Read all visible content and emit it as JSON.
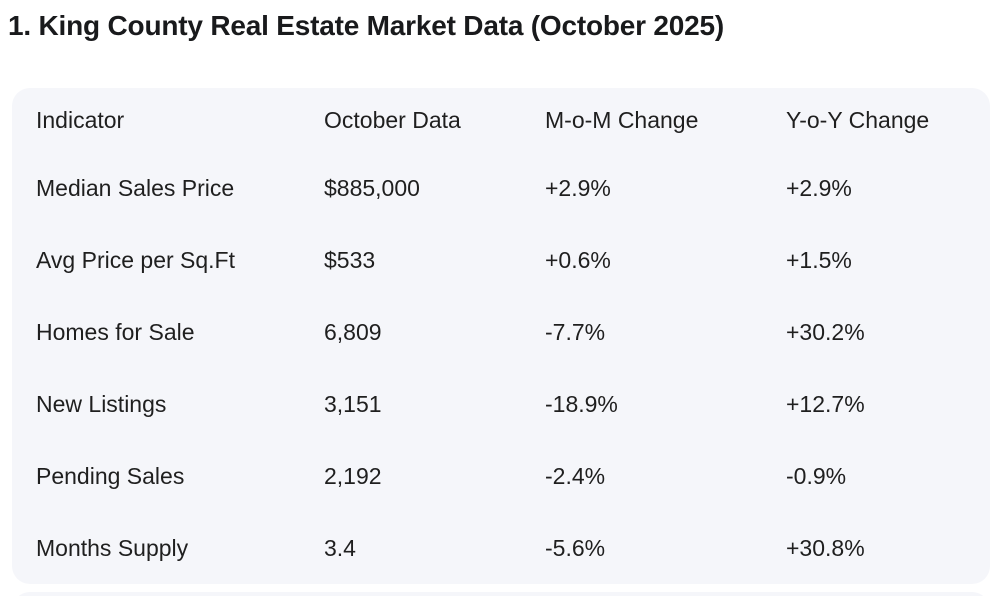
{
  "title": "1. King County Real Estate Market Data (October 2025)",
  "colors": {
    "page_background": "#ffffff",
    "card_background": "#f5f6fa",
    "title_text": "#191a1c",
    "table_text": "#1f1f1f"
  },
  "table": {
    "headers": [
      "Indicator",
      "October Data",
      "M-o-M Change",
      "Y-o-Y Change"
    ],
    "rows": [
      [
        "Median Sales Price",
        "$885,000",
        "+2.9%",
        "+2.9%"
      ],
      [
        "Avg Price per Sq.Ft",
        "$533",
        "+0.6%",
        "+1.5%"
      ],
      [
        "Homes for Sale",
        "6,809",
        "-7.7%",
        "+30.2%"
      ],
      [
        "New Listings",
        "3,151",
        "-18.9%",
        "+12.7%"
      ],
      [
        "Pending Sales",
        "2,192",
        "-2.4%",
        "-0.9%"
      ],
      [
        "Months Supply",
        "3.4",
        "-5.6%",
        "+30.8%"
      ]
    ]
  }
}
